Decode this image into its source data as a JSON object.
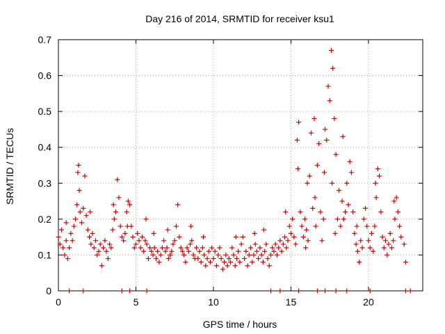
{
  "chart_data": {
    "type": "scatter",
    "title": "Day 216 of 2014, SRMTID for receiver ksu1",
    "xlabel": "GPS time / hours",
    "ylabel": "SRMTID / TECUs",
    "xlim": [
      0,
      23.5
    ],
    "ylim": [
      0,
      0.7
    ],
    "x_ticks": [
      0,
      5,
      10,
      15,
      20
    ],
    "y_ticks": [
      0,
      0.1,
      0.2,
      0.3,
      0.4,
      0.5,
      0.6,
      0.7
    ],
    "x_tick_labels": [
      "0",
      "5",
      "10",
      "15",
      "20"
    ],
    "y_tick_labels": [
      "0",
      "0.1",
      "0.2",
      "0.3",
      "0.4",
      "0.5",
      "0.6",
      "0.7"
    ],
    "grid": true,
    "marker": "+",
    "color": "#cc0000",
    "series": [
      {
        "name": "SRMTID",
        "points": [
          [
            0.0,
            0.15
          ],
          [
            0.1,
            0.13
          ],
          [
            0.2,
            0.17
          ],
          [
            0.3,
            0.12
          ],
          [
            0.4,
            0.1
          ],
          [
            0.5,
            0.14
          ],
          [
            0.6,
            0.09
          ],
          [
            0.7,
            0.12
          ],
          [
            0.8,
            0.16
          ],
          [
            0.9,
            0.14
          ],
          [
            1.0,
            0.18
          ],
          [
            1.1,
            0.2
          ],
          [
            1.2,
            0.24
          ],
          [
            1.25,
            0.33
          ],
          [
            1.3,
            0.35
          ],
          [
            1.4,
            0.22
          ],
          [
            1.5,
            0.19
          ],
          [
            1.6,
            0.23
          ],
          [
            1.7,
            0.32
          ],
          [
            1.8,
            0.21
          ],
          [
            1.9,
            0.17
          ],
          [
            2.0,
            0.15
          ],
          [
            2.1,
            0.13
          ],
          [
            2.2,
            0.16
          ],
          [
            2.3,
            0.12
          ],
          [
            2.4,
            0.14
          ],
          [
            2.5,
            0.1
          ],
          [
            2.6,
            0.11
          ],
          [
            2.7,
            0.13
          ],
          [
            2.8,
            0.07
          ],
          [
            2.9,
            0.12
          ],
          [
            3.0,
            0.14
          ],
          [
            3.1,
            0.11
          ],
          [
            3.2,
            0.09
          ],
          [
            3.3,
            0.13
          ],
          [
            3.4,
            0.12
          ],
          [
            3.5,
            0.17
          ],
          [
            3.6,
            0.2
          ],
          [
            3.7,
            0.22
          ],
          [
            3.8,
            0.31
          ],
          [
            3.9,
            0.26
          ],
          [
            4.0,
            0.18
          ],
          [
            4.1,
            0.15
          ],
          [
            4.2,
            0.14
          ],
          [
            4.3,
            0.16
          ],
          [
            4.4,
            0.22
          ],
          [
            4.5,
            0.25
          ],
          [
            4.6,
            0.24
          ],
          [
            4.7,
            0.18
          ],
          [
            4.8,
            0.15
          ],
          [
            4.9,
            0.12
          ],
          [
            5.0,
            0.13
          ],
          [
            5.1,
            0.16
          ],
          [
            5.2,
            0.14
          ],
          [
            5.3,
            0.12
          ],
          [
            5.4,
            0.15
          ],
          [
            5.5,
            0.11
          ],
          [
            5.6,
            0.14
          ],
          [
            5.7,
            0.13
          ],
          [
            5.8,
            0.09
          ],
          [
            5.9,
            0.12
          ],
          [
            6.0,
            0.11
          ],
          [
            6.1,
            0.1
          ],
          [
            6.2,
            0.12
          ],
          [
            6.3,
            0.09
          ],
          [
            6.4,
            0.11
          ],
          [
            6.5,
            0.08
          ],
          [
            6.6,
            0.1
          ],
          [
            6.7,
            0.12
          ],
          [
            6.8,
            0.14
          ],
          [
            6.9,
            0.11
          ],
          [
            7.0,
            0.12
          ],
          [
            7.1,
            0.09
          ],
          [
            7.2,
            0.1
          ],
          [
            7.3,
            0.11
          ],
          [
            7.4,
            0.13
          ],
          [
            7.5,
            0.14
          ],
          [
            7.6,
            0.18
          ],
          [
            7.7,
            0.24
          ],
          [
            7.8,
            0.15
          ],
          [
            7.9,
            0.12
          ],
          [
            8.0,
            0.11
          ],
          [
            8.1,
            0.1
          ],
          [
            8.2,
            0.08
          ],
          [
            8.3,
            0.12
          ],
          [
            8.4,
            0.11
          ],
          [
            8.5,
            0.13
          ],
          [
            8.6,
            0.14
          ],
          [
            8.7,
            0.1
          ],
          [
            8.8,
            0.09
          ],
          [
            8.9,
            0.12
          ],
          [
            9.0,
            0.09
          ],
          [
            9.1,
            0.11
          ],
          [
            9.2,
            0.08
          ],
          [
            9.3,
            0.12
          ],
          [
            9.4,
            0.1
          ],
          [
            9.5,
            0.07
          ],
          [
            9.6,
            0.09
          ],
          [
            9.7,
            0.11
          ],
          [
            9.8,
            0.08
          ],
          [
            9.9,
            0.12
          ],
          [
            10.0,
            0.09
          ],
          [
            10.1,
            0.11
          ],
          [
            10.2,
            0.07
          ],
          [
            10.3,
            0.1
          ],
          [
            10.4,
            0.12
          ],
          [
            10.5,
            0.09
          ],
          [
            10.6,
            0.06
          ],
          [
            10.7,
            0.08
          ],
          [
            10.8,
            0.1
          ],
          [
            10.9,
            0.07
          ],
          [
            11.0,
            0.09
          ],
          [
            11.1,
            0.08
          ],
          [
            11.2,
            0.12
          ],
          [
            11.3,
            0.1
          ],
          [
            11.4,
            0.07
          ],
          [
            11.5,
            0.09
          ],
          [
            11.6,
            0.11
          ],
          [
            11.7,
            0.08
          ],
          [
            11.8,
            0.13
          ],
          [
            11.9,
            0.15
          ],
          [
            12.0,
            0.09
          ],
          [
            12.1,
            0.11
          ],
          [
            12.2,
            0.07
          ],
          [
            12.3,
            0.1
          ],
          [
            12.4,
            0.12
          ],
          [
            12.5,
            0.08
          ],
          [
            12.6,
            0.1
          ],
          [
            12.7,
            0.13
          ],
          [
            12.8,
            0.11
          ],
          [
            12.9,
            0.09
          ],
          [
            13.0,
            0.12
          ],
          [
            13.1,
            0.1
          ],
          [
            13.2,
            0.08
          ],
          [
            13.3,
            0.11
          ],
          [
            13.4,
            0.13
          ],
          [
            13.5,
            0.09
          ],
          [
            13.6,
            0.07
          ],
          [
            13.7,
            0.1
          ],
          [
            13.8,
            0.12
          ],
          [
            13.9,
            0.11
          ],
          [
            14.0,
            0.13
          ],
          [
            14.1,
            0.1
          ],
          [
            14.2,
            0.12
          ],
          [
            14.3,
            0.14
          ],
          [
            14.4,
            0.11
          ],
          [
            14.5,
            0.13
          ],
          [
            14.6,
            0.15
          ],
          [
            14.7,
            0.12
          ],
          [
            14.8,
            0.14
          ],
          [
            14.9,
            0.18
          ],
          [
            15.0,
            0.16
          ],
          [
            15.1,
            0.2
          ],
          [
            15.2,
            0.15
          ],
          [
            15.3,
            0.13
          ],
          [
            15.4,
            0.42
          ],
          [
            15.5,
            0.47
          ],
          [
            15.6,
            0.22
          ],
          [
            15.7,
            0.18
          ],
          [
            15.8,
            0.15
          ],
          [
            15.9,
            0.2
          ],
          [
            16.0,
            0.17
          ],
          [
            16.1,
            0.14
          ],
          [
            16.2,
            0.32
          ],
          [
            16.3,
            0.44
          ],
          [
            16.4,
            0.23
          ],
          [
            16.5,
            0.48
          ],
          [
            16.6,
            0.18
          ],
          [
            16.7,
            0.35
          ],
          [
            16.8,
            0.41
          ],
          [
            16.9,
            0.22
          ],
          [
            17.0,
            0.14
          ],
          [
            17.1,
            0.2
          ],
          [
            17.2,
            0.45
          ],
          [
            17.3,
            0.42
          ],
          [
            17.4,
            0.57
          ],
          [
            17.5,
            0.53
          ],
          [
            17.6,
            0.67
          ],
          [
            17.7,
            0.62
          ],
          [
            17.8,
            0.48
          ],
          [
            17.9,
            0.38
          ],
          [
            18.0,
            0.2
          ],
          [
            18.1,
            0.28
          ],
          [
            18.2,
            0.18
          ],
          [
            18.3,
            0.25
          ],
          [
            18.4,
            0.2
          ],
          [
            18.5,
            0.22
          ],
          [
            18.6,
            0.3
          ],
          [
            18.7,
            0.24
          ],
          [
            18.8,
            0.36
          ],
          [
            18.9,
            0.33
          ],
          [
            19.0,
            0.22
          ],
          [
            19.1,
            0.16
          ],
          [
            19.2,
            0.13
          ],
          [
            19.3,
            0.11
          ],
          [
            19.4,
            0.08
          ],
          [
            19.5,
            0.14
          ],
          [
            19.6,
            0.12
          ],
          [
            19.7,
            0.2
          ],
          [
            19.8,
            0.23
          ],
          [
            19.9,
            0.18
          ],
          [
            20.0,
            0.14
          ],
          [
            20.1,
            0.12
          ],
          [
            20.2,
            0.16
          ],
          [
            20.3,
            0.11
          ],
          [
            20.4,
            0.18
          ],
          [
            20.5,
            0.26
          ],
          [
            20.6,
            0.34
          ],
          [
            20.7,
            0.32
          ],
          [
            20.8,
            0.22
          ],
          [
            20.9,
            0.15
          ],
          [
            21.0,
            0.12
          ],
          [
            21.1,
            0.14
          ],
          [
            21.2,
            0.1
          ],
          [
            21.3,
            0.13
          ],
          [
            21.4,
            0.16
          ],
          [
            21.5,
            0.12
          ],
          [
            21.6,
            0.14
          ],
          [
            21.7,
            0.2
          ],
          [
            21.8,
            0.26
          ],
          [
            21.9,
            0.22
          ],
          [
            22.0,
            0.18
          ],
          [
            22.1,
            0.15
          ],
          [
            22.3,
            0.13
          ],
          [
            22.4,
            0.08
          ],
          [
            0.5,
            0.19
          ],
          [
            1.35,
            0.28
          ],
          [
            2.05,
            0.22
          ],
          [
            3.55,
            0.24
          ],
          [
            6.15,
            0.16
          ],
          [
            8.55,
            0.18
          ],
          [
            11.45,
            0.15
          ],
          [
            13.25,
            0.17
          ],
          [
            15.45,
            0.34
          ],
          [
            16.05,
            0.3
          ],
          [
            16.55,
            0.26
          ],
          [
            17.15,
            0.33
          ],
          [
            17.65,
            0.3
          ],
          [
            18.35,
            0.43
          ],
          [
            19.25,
            0.18
          ],
          [
            20.45,
            0.3
          ],
          [
            21.65,
            0.25
          ],
          [
            4.45,
            0.18
          ],
          [
            5.65,
            0.2
          ],
          [
            7.05,
            0.17
          ],
          [
            9.35,
            0.15
          ],
          [
            12.65,
            0.16
          ],
          [
            14.65,
            0.22
          ],
          [
            15.95,
            0.12
          ],
          [
            17.85,
            0.16
          ],
          [
            0.7,
            0.0
          ],
          [
            1.6,
            0.0
          ],
          [
            4.1,
            0.0
          ],
          [
            4.6,
            0.0
          ],
          [
            5.7,
            0.0
          ],
          [
            13.7,
            0.0
          ],
          [
            14.3,
            0.0
          ],
          [
            15.5,
            0.0
          ],
          [
            16.7,
            0.0
          ],
          [
            17.2,
            0.0
          ],
          [
            17.9,
            0.0
          ],
          [
            18.6,
            0.0
          ],
          [
            20.1,
            0.0
          ],
          [
            22.4,
            0.0
          ],
          [
            22.7,
            0.0
          ]
        ]
      }
    ]
  }
}
